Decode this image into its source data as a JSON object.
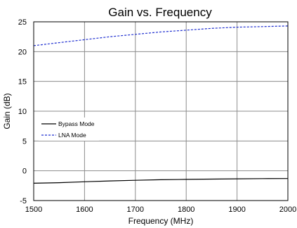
{
  "chart_data": {
    "type": "line",
    "title": "Gain vs. Frequency",
    "xlabel": "Frequency (MHz)",
    "ylabel": "Gain (dB)",
    "xlim": [
      1500,
      2000
    ],
    "ylim": [
      -5,
      25
    ],
    "xticks": [
      1500,
      1600,
      1700,
      1800,
      1900,
      2000
    ],
    "yticks": [
      -5,
      0,
      5,
      10,
      15,
      20,
      25
    ],
    "grid": true,
    "legend_position": "middle-left",
    "series": [
      {
        "name": "Bypass Mode",
        "color": "#000000",
        "dash": "solid",
        "x": [
          1500,
          1550,
          1600,
          1650,
          1700,
          1750,
          1800,
          1850,
          1900,
          1950,
          2000
        ],
        "y": [
          -2.1,
          -2.0,
          -1.85,
          -1.7,
          -1.6,
          -1.5,
          -1.45,
          -1.4,
          -1.35,
          -1.32,
          -1.3
        ]
      },
      {
        "name": "LNA Mode",
        "color": "#1f2fd0",
        "dash": "dashed",
        "x": [
          1500,
          1550,
          1600,
          1650,
          1700,
          1750,
          1800,
          1850,
          1900,
          1950,
          2000
        ],
        "y": [
          21.0,
          21.5,
          22.0,
          22.5,
          22.9,
          23.3,
          23.6,
          23.9,
          24.1,
          24.2,
          24.3
        ]
      }
    ]
  }
}
